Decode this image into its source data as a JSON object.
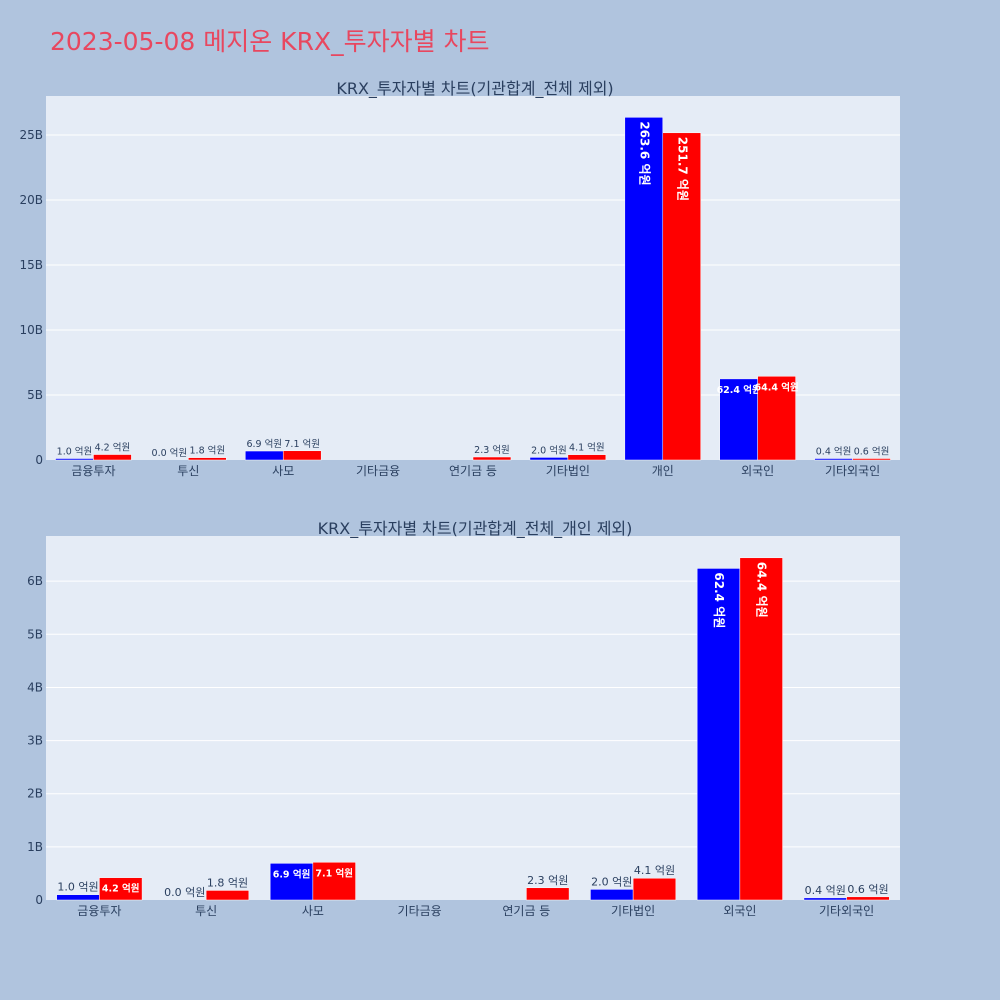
{
  "title": "2023-05-08 메지온 KRX_투자자별 차트",
  "colors": {
    "buy": "#0000ff",
    "sell": "#ff0000",
    "plot_bg": "#e5ecf6",
    "page_bg": "#b0c4de",
    "title": "#e8475f"
  },
  "chart_data": [
    {
      "type": "bar",
      "title": "KRX_투자자별 차트(기관합계_전체 제외)",
      "categories": [
        "금융투자",
        "투신",
        "사모",
        "기타금융",
        "연기금 등",
        "기타법인",
        "개인",
        "외국인",
        "기타외국인"
      ],
      "series": [
        {
          "values": [
            0.1,
            0.0,
            0.69,
            0.0,
            0.0,
            0.2,
            26.36,
            6.24,
            0.04
          ],
          "labels": [
            "1.0 억원",
            "0.0 억원",
            "6.9 억원",
            "",
            "",
            "2.0 억원",
            "263.6 억원",
            "62.4 억원",
            "0.4 억원"
          ]
        },
        {
          "values": [
            0.42,
            0.18,
            0.71,
            0.0,
            0.23,
            0.41,
            25.17,
            6.44,
            0.06
          ],
          "labels": [
            "4.2 억원",
            "1.8 억원",
            "7.1 억원",
            "",
            "2.3 억원",
            "4.1 억원",
            "251.7 억원",
            "64.4 억원",
            "0.6 억원"
          ]
        }
      ],
      "yticks": [
        "0",
        "5B",
        "10B",
        "15B",
        "20B",
        "25B"
      ],
      "ylim": [
        0,
        28
      ]
    },
    {
      "type": "bar",
      "title": "KRX_투자자별 차트(기관합계_전체_개인 제외)",
      "categories": [
        "금융투자",
        "투신",
        "사모",
        "기타금융",
        "연기금 등",
        "기타법인",
        "외국인",
        "기타외국인"
      ],
      "series": [
        {
          "values": [
            0.1,
            0.0,
            0.69,
            0.0,
            0.0,
            0.2,
            6.24,
            0.04
          ],
          "labels": [
            "1.0 억원",
            "0.0 억원",
            "6.9 억원",
            "",
            "",
            "2.0 억원",
            "62.4 억원",
            "0.4 억원"
          ]
        },
        {
          "values": [
            0.42,
            0.18,
            0.71,
            0.0,
            0.23,
            0.41,
            6.44,
            0.06
          ],
          "labels": [
            "4.2 억원",
            "1.8 억원",
            "7.1 억원",
            "",
            "2.3 억원",
            "4.1 억원",
            "64.4 억원",
            "0.6 억원"
          ]
        }
      ],
      "yticks": [
        "0",
        "1B",
        "2B",
        "3B",
        "4B",
        "5B",
        "6B"
      ],
      "ylim": [
        0,
        6.85
      ]
    }
  ]
}
